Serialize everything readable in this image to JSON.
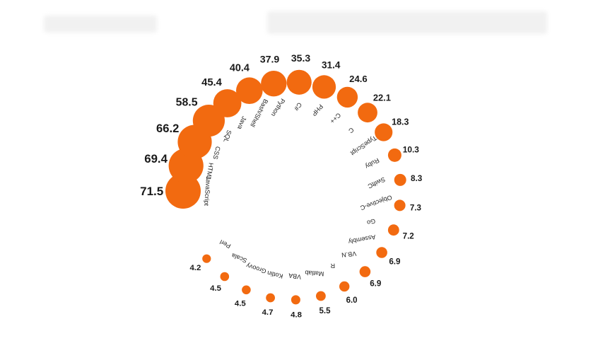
{
  "chart_data": {
    "type": "radial-bubble",
    "title": "",
    "xlabel": "",
    "ylabel": "",
    "categories": [
      "JavaScript",
      "HTML",
      "CSS",
      "SQL",
      "Java",
      "Bash/Shell",
      "Python",
      "C#",
      "PHP",
      "C++",
      "C",
      "TypeScript",
      "Ruby",
      "SwiftC",
      "Objective-C",
      "Go",
      "Assembly",
      "VB.N",
      "R",
      "Matlab",
      "VBA",
      "Kotlin",
      "Groovy",
      "Scala",
      "Perl"
    ],
    "values": [
      71.5,
      69.4,
      66.2,
      58.5,
      45.4,
      40.4,
      37.9,
      35.3,
      31.4,
      24.6,
      22.1,
      18.3,
      10.3,
      8.3,
      7.3,
      7.2,
      6.9,
      6.9,
      6.0,
      5.5,
      4.8,
      4.7,
      4.5,
      4.5,
      4.2
    ],
    "value_labels": [
      "71.5",
      "69.4",
      "66.2",
      "58.5",
      "45.4",
      "40.4",
      "37.9",
      "35.3",
      "31.4",
      "24.6",
      "22.1",
      "18.3",
      "10.3",
      "8.3",
      "7.3",
      "7.2",
      "6.9",
      "6.9",
      "6.0",
      "5.5",
      "4.8",
      "4.7",
      "4.5",
      "4.5",
      "4.2"
    ],
    "bubble_color": "#f26a10",
    "label_color": "#1a1a1a"
  }
}
